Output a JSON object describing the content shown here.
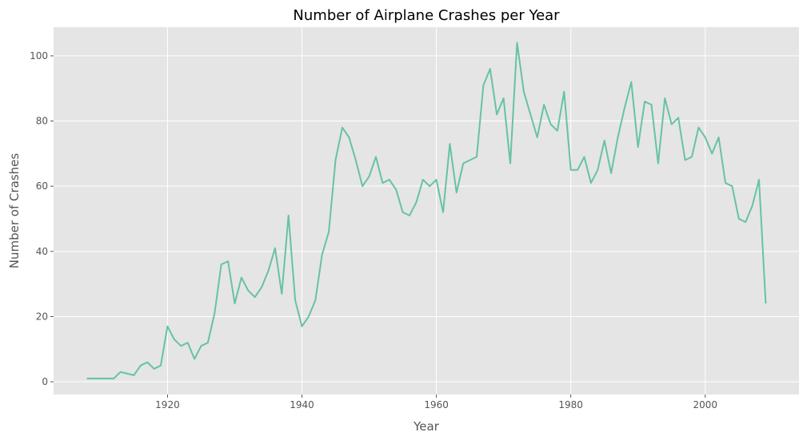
{
  "chart_data": {
    "type": "line",
    "title": "Number of Airplane Crashes per Year",
    "xlabel": "Year",
    "ylabel": "Number of Crashes",
    "xlim": [
      1903.05,
      2013.95
    ],
    "ylim": [
      -3.9,
      108.8
    ],
    "xticks": [
      1920,
      1940,
      1960,
      1980,
      2000
    ],
    "yticks": [
      0,
      20,
      40,
      60,
      80,
      100
    ],
    "grid": true,
    "style": "ggplot",
    "colors": {
      "line": "#66c2a5",
      "plot_bg": "#e5e5e5",
      "grid": "#ffffff",
      "tick_text": "#555555"
    },
    "x": [
      1908,
      1909,
      1910,
      1911,
      1912,
      1913,
      1915,
      1916,
      1917,
      1918,
      1919,
      1920,
      1921,
      1922,
      1923,
      1924,
      1925,
      1926,
      1927,
      1928,
      1929,
      1930,
      1931,
      1932,
      1933,
      1934,
      1935,
      1936,
      1937,
      1938,
      1939,
      1940,
      1941,
      1942,
      1943,
      1944,
      1945,
      1946,
      1947,
      1948,
      1949,
      1950,
      1951,
      1952,
      1953,
      1954,
      1955,
      1956,
      1957,
      1958,
      1959,
      1960,
      1961,
      1962,
      1963,
      1964,
      1965,
      1966,
      1967,
      1968,
      1969,
      1970,
      1971,
      1972,
      1973,
      1974,
      1975,
      1976,
      1977,
      1978,
      1979,
      1980,
      1981,
      1982,
      1983,
      1984,
      1985,
      1986,
      1987,
      1988,
      1989,
      1990,
      1991,
      1992,
      1993,
      1994,
      1995,
      1996,
      1997,
      1998,
      1999,
      2000,
      2001,
      2002,
      2003,
      2004,
      2005,
      2006,
      2007,
      2008,
      2009
    ],
    "y": [
      1,
      1,
      1,
      1,
      1,
      3,
      2,
      5,
      6,
      4,
      5,
      17,
      13,
      11,
      12,
      7,
      11,
      12,
      21,
      36,
      37,
      24,
      32,
      28,
      26,
      29,
      34,
      41,
      27,
      51,
      25,
      17,
      20,
      25,
      39,
      46,
      68,
      78,
      75,
      68,
      60,
      63,
      69,
      61,
      62,
      59,
      52,
      51,
      55,
      62,
      60,
      62,
      52,
      73,
      58,
      67,
      68,
      69,
      91,
      96,
      82,
      87,
      67,
      104,
      89,
      82,
      75,
      85,
      79,
      77,
      89,
      65,
      65,
      69,
      61,
      65,
      74,
      64,
      75,
      84,
      92,
      72,
      86,
      85,
      67,
      87,
      79,
      81,
      68,
      69,
      78,
      75,
      70,
      75,
      61,
      60,
      50,
      49,
      54,
      62,
      24
    ]
  }
}
